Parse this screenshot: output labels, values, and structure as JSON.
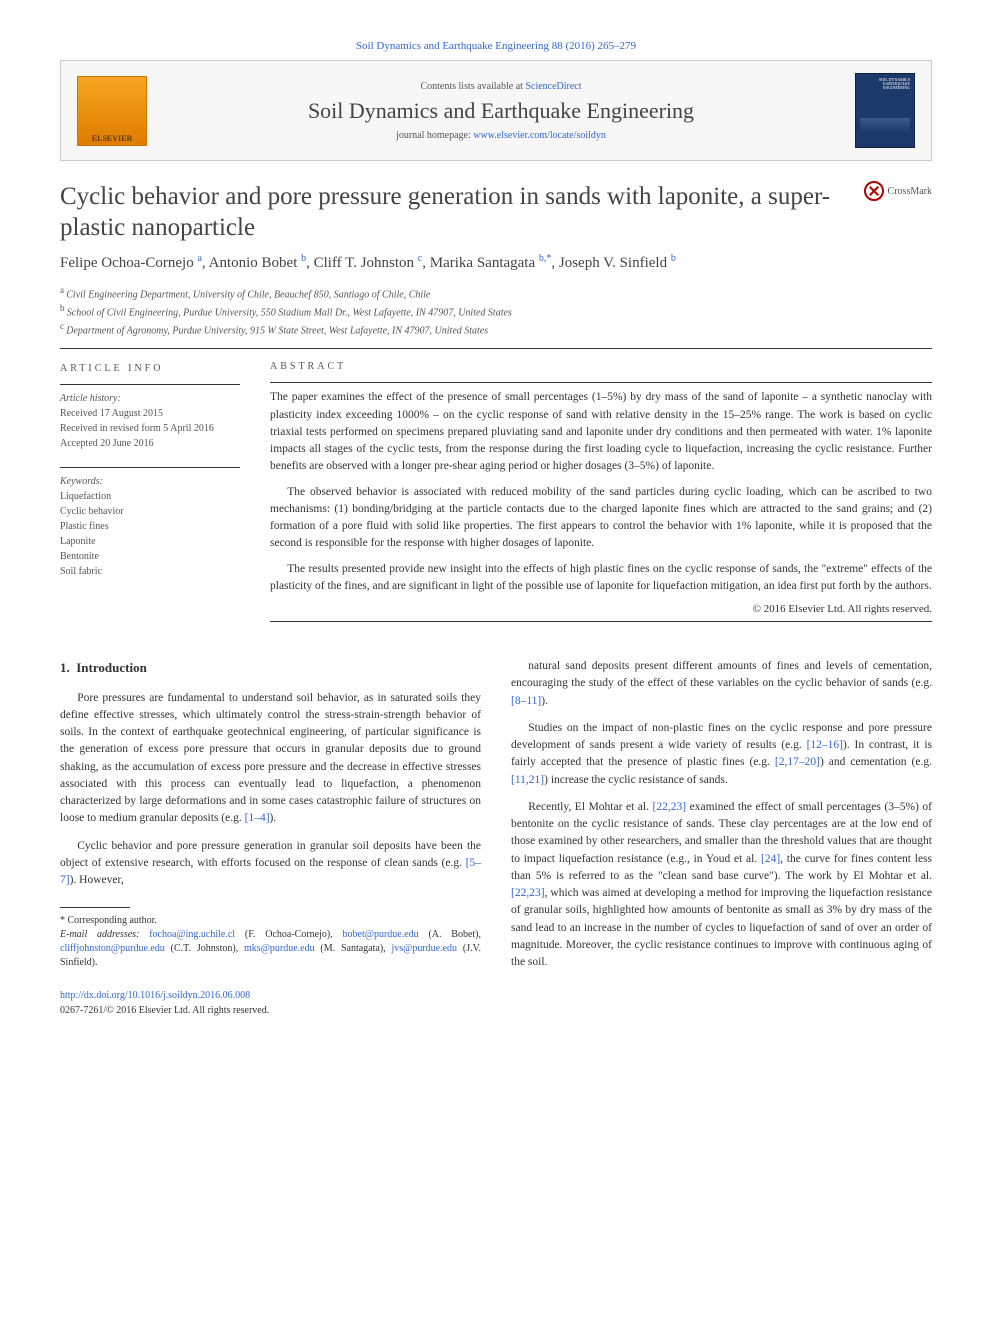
{
  "header_link": "Soil Dynamics and Earthquake Engineering 88 (2016) 265–279",
  "journal_box": {
    "contents_prefix": "Contents lists available at ",
    "contents_link": "ScienceDirect",
    "journal_title": "Soil Dynamics and Earthquake Engineering",
    "homepage_prefix": "journal homepage: ",
    "homepage_link": "www.elsevier.com/locate/soildyn",
    "elsevier": "ELSEVIER",
    "cover_text": "SOIL DYNAMICS EARTHQUAKE ENGINEERING"
  },
  "crossmark": "CrossMark",
  "article_title": "Cyclic behavior and pore pressure generation in sands with laponite, a super-plastic nanoparticle",
  "authors_html": "Felipe Ochoa-Cornejo|a|, Antonio Bobet|b|, Cliff T. Johnston|c|, Marika Santagata|b,*|, Joseph V. Sinfield|b|",
  "authors": [
    {
      "name": "Felipe Ochoa-Cornejo",
      "aff": "a"
    },
    {
      "name": "Antonio Bobet",
      "aff": "b"
    },
    {
      "name": "Cliff T. Johnston",
      "aff": "c"
    },
    {
      "name": "Marika Santagata",
      "aff": "b,*"
    },
    {
      "name": "Joseph V. Sinfield",
      "aff": "b"
    }
  ],
  "affiliations": [
    {
      "sup": "a",
      "text": "Civil Engineering Department, University of Chile, Beauchef 850, Santiago of Chile, Chile"
    },
    {
      "sup": "b",
      "text": "School of Civil Engineering, Purdue University, 550 Stadium Mall Dr., West Lafayette, IN 47907, United States"
    },
    {
      "sup": "c",
      "text": "Department of Agronomy, Purdue University, 915 W State Street, West Lafayette, IN 47907, United States"
    }
  ],
  "info": {
    "heading": "ARTICLE INFO",
    "history_label": "Article history:",
    "history": [
      "Received 17 August 2015",
      "Received in revised form 5 April 2016",
      "Accepted 20 June 2016"
    ],
    "keywords_label": "Keywords:",
    "keywords": [
      "Liquefaction",
      "Cyclic behavior",
      "Plastic fines",
      "Laponite",
      "Bentonite",
      "Soil fabric"
    ]
  },
  "abstract": {
    "heading": "ABSTRACT",
    "paragraphs": [
      "The paper examines the effect of the presence of small percentages (1–5%) by dry mass of the sand of laponite – a synthetic nanoclay with plasticity index exceeding 1000% – on the cyclic response of sand with relative density in the 15–25% range. The work is based on cyclic triaxial tests performed on specimens prepared pluviating sand and laponite under dry conditions and then permeated with water. 1% laponite impacts all stages of the cyclic tests, from the response during the first loading cycle to liquefaction, increasing the cyclic resistance. Further benefits are observed with a longer pre-shear aging period or higher dosages (3–5%) of laponite.",
      "The observed behavior is associated with reduced mobility of the sand particles during cyclic loading, which can be ascribed to two mechanisms: (1) bonding/bridging at the particle contacts due to the charged laponite fines which are attracted to the sand grains; and (2) formation of a pore fluid with solid like properties. The first appears to control the behavior with 1% laponite, while it is proposed that the second is responsible for the response with higher dosages of laponite.",
      "The results presented provide new insight into the effects of high plastic fines on the cyclic response of sands, the \"extreme\" effects of the plasticity of the fines, and are significant in light of the possible use of laponite for liquefaction mitigation, an idea first put forth by the authors."
    ],
    "copyright": "© 2016 Elsevier Ltd. All rights reserved."
  },
  "body": {
    "section_number": "1.",
    "section_title": "Introduction",
    "left_col": [
      "Pore pressures are fundamental to understand soil behavior, as in saturated soils they define effective stresses, which ultimately control the stress-strain-strength behavior of soils. In the context of earthquake geotechnical engineering, of particular significance is the generation of excess pore pressure that occurs in granular deposits due to ground shaking, as the accumulation of excess pore pressure and the decrease in effective stresses associated with this process can eventually lead to liquefaction, a phenomenon characterized by large deformations and in some cases catastrophic failure of structures on loose to medium granular deposits (e.g. [1–4]).",
      "Cyclic behavior and pore pressure generation in granular soil deposits have been the object of extensive research, with efforts focused on the response of clean sands (e.g. [5–7]). However,"
    ],
    "right_col": [
      "natural sand deposits present different amounts of fines and levels of cementation, encouraging the study of the effect of these variables on the cyclic behavior of sands (e.g. [8–11]).",
      "Studies on the impact of non-plastic fines on the cyclic response and pore pressure development of sands present a wide variety of results (e.g. [12–16]). In contrast, it is fairly accepted that the presence of plastic fines (e.g. [2,17–20]) and cementation (e.g. [11,21]) increase the cyclic resistance of sands.",
      "Recently, El Mohtar et al. [22,23] examined the effect of small percentages (3–5%) of bentonite on the cyclic resistance of sands. These clay percentages are at the low end of those examined by other researchers, and smaller than the threshold values that are thought to impact liquefaction resistance (e.g., in Youd et al. [24], the curve for fines content less than 5% is referred to as the \"clean sand base curve\"). The work by El Mohtar et al. [22,23], which was aimed at developing a method for improving the liquefaction resistance of granular soils, highlighted how amounts of bentonite as small as 3% by dry mass of the sand lead to an increase in the number of cycles to liquefaction of sand of over an order of magnitude. Moreover, the cyclic resistance continues to improve with continuous aging of the soil."
    ]
  },
  "footnote": {
    "corr_label": "* Corresponding author.",
    "emails_label": "E-mail addresses:",
    "emails": [
      {
        "addr": "fochoa@ing.uchile.cl",
        "who": "(F. Ochoa-Cornejo)"
      },
      {
        "addr": "bobet@purdue.edu",
        "who": "(A. Bobet)"
      },
      {
        "addr": "cliffjohnston@purdue.edu",
        "who": "(C.T. Johnston)"
      },
      {
        "addr": "mks@purdue.edu",
        "who": "(M. Santagata)"
      },
      {
        "addr": "jvs@purdue.edu",
        "who": "(J.V. Sinfield)"
      }
    ]
  },
  "doi": {
    "link": "http://dx.doi.org/10.1016/j.soildyn.2016.06.008",
    "issn": "0267-7261/© 2016 Elsevier Ltd. All rights reserved."
  },
  "colors": {
    "link": "#3366cc",
    "text": "#333333",
    "muted": "#555555",
    "rule": "#333333",
    "journal_bg": "#f7f7f7",
    "journal_border": "#cccccc",
    "elsevier_top": "#f5a623",
    "elsevier_bottom": "#e07b00",
    "cover_bg": "#1b3a6b",
    "crossmark_red": "#b00000"
  }
}
